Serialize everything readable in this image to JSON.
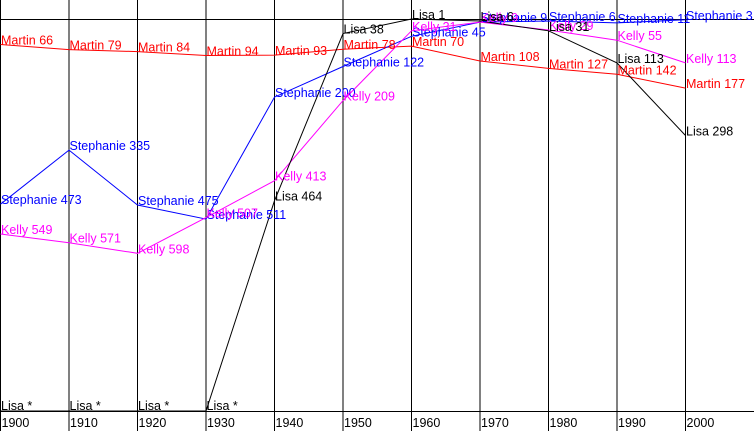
{
  "chart_data": {
    "type": "line",
    "title": "",
    "xlabel": "",
    "ylabel": "",
    "rank_range": [
      1,
      1000
    ],
    "grid": "vertical lines at each decade",
    "missing_marker": "*",
    "x": [
      1900,
      1910,
      1920,
      1930,
      1940,
      1950,
      1960,
      1970,
      1980,
      1990,
      2000
    ],
    "x_tick_labels": [
      "1900",
      "1910",
      "1920",
      "1930",
      "1940",
      "1950",
      "1960",
      "1970",
      "1980",
      "1990",
      "2000"
    ],
    "series": [
      {
        "name": "Martin",
        "color": "#ff0000",
        "values": [
          66,
          79,
          84,
          94,
          93,
          78,
          70,
          108,
          127,
          142,
          177
        ]
      },
      {
        "name": "Stephanie",
        "color": "#0000ff",
        "values": [
          473,
          335,
          475,
          511,
          200,
          122,
          45,
          9,
          6,
          11,
          3
        ]
      },
      {
        "name": "Kelly",
        "color": "#ff00ff",
        "values": [
          549,
          571,
          598,
          507,
          413,
          209,
          31,
          9,
          29,
          55,
          113
        ]
      },
      {
        "name": "Lisa",
        "color": "#000000",
        "values": [
          null,
          null,
          null,
          null,
          464,
          38,
          1,
          6,
          31,
          113,
          298
        ]
      }
    ]
  }
}
